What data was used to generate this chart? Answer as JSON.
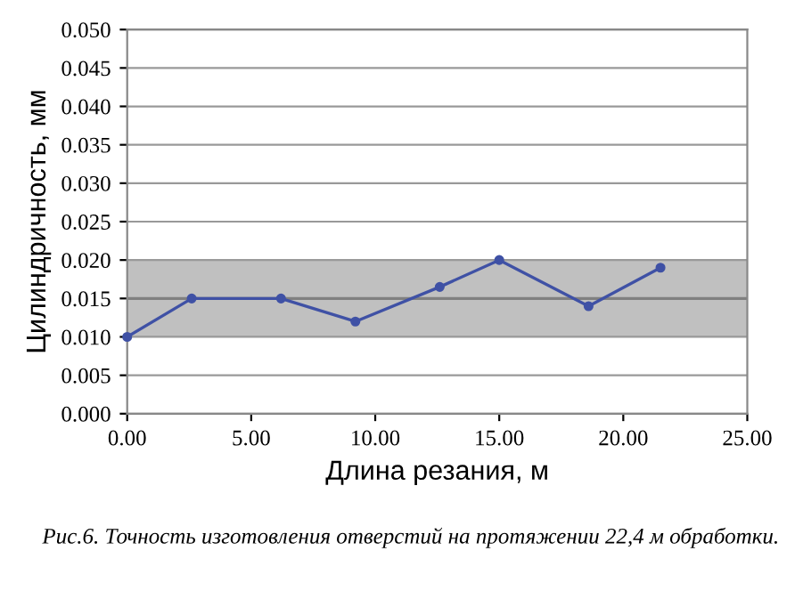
{
  "chart_data": {
    "type": "line",
    "xlabel": "Длина резания, м",
    "ylabel": "Цилиндричность, мм",
    "annotations": [
      "Рис.6. Точность изготовления отверстий на протяжении 22,4 м обработки."
    ],
    "x": [
      0,
      2.6,
      6.2,
      9.2,
      12.6,
      15.0,
      18.6,
      21.5
    ],
    "series": [
      {
        "color": "#3f51a5",
        "values": [
          0.01,
          0.015,
          0.015,
          0.012,
          0.0165,
          0.02,
          0.014,
          0.019
        ]
      }
    ],
    "xlim": [
      0,
      25
    ],
    "xticks": [
      {
        "value": 0,
        "label": "0.00"
      },
      {
        "value": 5,
        "label": "5.00"
      },
      {
        "value": 10,
        "label": "10.00"
      },
      {
        "value": 15,
        "label": "15.00"
      },
      {
        "value": 20,
        "label": "20.00"
      },
      {
        "value": 25,
        "label": "25.00"
      }
    ],
    "ylim": [
      0,
      0.05
    ],
    "yticks": [
      {
        "value": 0,
        "label": "0.000"
      },
      {
        "value": 0.005,
        "label": "0.005"
      },
      {
        "value": 0.01,
        "label": "0.010"
      },
      {
        "value": 0.015,
        "label": "0.015"
      },
      {
        "value": 0.02,
        "label": "0.020"
      },
      {
        "value": 0.025,
        "label": "0.025"
      },
      {
        "value": 0.03,
        "label": "0.030"
      },
      {
        "value": 0.035,
        "label": "0.035"
      },
      {
        "value": 0.04,
        "label": "0.040"
      },
      {
        "value": 0.045,
        "label": "0.045"
      },
      {
        "value": 0.05,
        "label": "0.050"
      }
    ],
    "grid": "y",
    "marker": "circle",
    "line_style": "solid",
    "bands": [
      {
        "axis": "y",
        "from": 0.01,
        "to": 0.02,
        "color": "#c0c0c0"
      }
    ],
    "ref_lines": [
      {
        "axis": "y",
        "value": 0.015,
        "color": "#808080"
      }
    ]
  }
}
